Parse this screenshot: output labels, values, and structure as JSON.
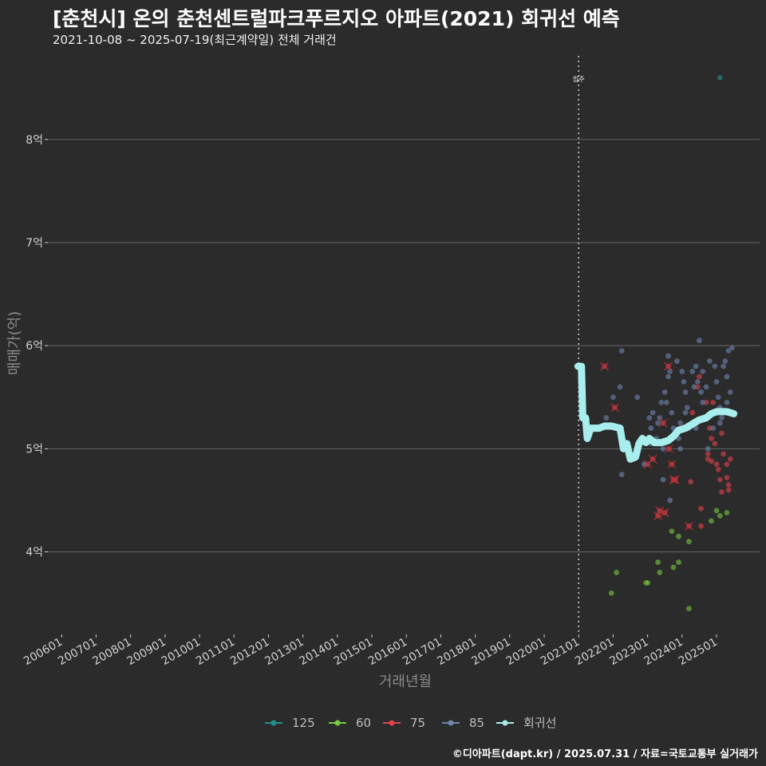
{
  "header": {
    "title": "[춘천시] 온의 춘천센트럴파크푸르지오 아파트(2021) 회귀선 예측",
    "subtitle": "2021-10-08 ~ 2025-07-19(최근계약일) 전체 거래건",
    "caption": "©디아파트(dapt.kr) / 2025.07.31 / 자료=국토교통부 실거래가"
  },
  "chart_data": {
    "type": "scatter",
    "xlabel": "거래년월",
    "ylabel": "매매가(억)",
    "ylim": [
      3.2,
      8.85
    ],
    "xlim": [
      2005.6,
      2026.25
    ],
    "yticks": [
      4,
      5,
      6,
      7,
      8
    ],
    "ytick_labels": [
      "4억",
      "5억",
      "6억",
      "7억",
      "8억"
    ],
    "xticks": [
      "200601",
      "200701",
      "200801",
      "200901",
      "201001",
      "201101",
      "201201",
      "201301",
      "201401",
      "201501",
      "201601",
      "201701",
      "201801",
      "201901",
      "202001",
      "202101",
      "202201",
      "202301",
      "202401",
      "202501"
    ],
    "annotation": {
      "label": "입주",
      "x": 2021.0
    },
    "legend": [
      {
        "key": "125",
        "color": "#21908c"
      },
      {
        "key": "60",
        "color": "#7ac943"
      },
      {
        "key": "75",
        "color": "#e0454f"
      },
      {
        "key": "85",
        "color": "#7186b0"
      },
      {
        "key": "회귀선",
        "color": "#a8eeee"
      }
    ],
    "series": [
      {
        "name": "125",
        "color": "#21908c",
        "points": [
          [
            2025.1,
            8.6
          ]
        ]
      },
      {
        "name": "60",
        "color": "#7ac943",
        "points": [
          [
            2021.95,
            3.6
          ],
          [
            2022.1,
            3.8
          ],
          [
            2022.95,
            3.7
          ],
          [
            2023.0,
            3.7
          ],
          [
            2023.3,
            3.9
          ],
          [
            2023.35,
            3.8
          ],
          [
            2023.7,
            4.2
          ],
          [
            2023.75,
            3.85
          ],
          [
            2023.9,
            3.9
          ],
          [
            2023.9,
            4.15
          ],
          [
            2024.2,
            4.1
          ],
          [
            2024.2,
            3.45
          ],
          [
            2024.85,
            4.3
          ],
          [
            2025.0,
            4.4
          ],
          [
            2025.1,
            4.35
          ],
          [
            2025.3,
            4.38
          ]
        ]
      },
      {
        "name": "75",
        "color": "#e0454f",
        "points": [
          [
            2021.75,
            5.8
          ],
          [
            2022.05,
            5.4
          ],
          [
            2023.0,
            4.85
          ],
          [
            2023.15,
            4.9
          ],
          [
            2023.3,
            4.35
          ],
          [
            2023.35,
            4.4
          ],
          [
            2023.45,
            5.25
          ],
          [
            2023.5,
            4.38
          ],
          [
            2023.6,
            5.8
          ],
          [
            2023.62,
            5.0
          ],
          [
            2023.7,
            4.85
          ],
          [
            2023.75,
            4.7
          ],
          [
            2023.8,
            4.7
          ],
          [
            2024.2,
            4.25
          ],
          [
            2024.25,
            4.68
          ],
          [
            2024.3,
            5.35
          ],
          [
            2024.45,
            5.6
          ],
          [
            2024.5,
            5.7
          ],
          [
            2024.55,
            4.42
          ],
          [
            2024.55,
            4.25
          ],
          [
            2024.7,
            5.45
          ],
          [
            2024.75,
            4.95
          ],
          [
            2024.75,
            4.9
          ],
          [
            2024.8,
            5.2
          ],
          [
            2024.85,
            5.1
          ],
          [
            2024.85,
            4.88
          ],
          [
            2024.9,
            5.45
          ],
          [
            2025.0,
            4.85
          ],
          [
            2025.05,
            4.8
          ],
          [
            2025.1,
            4.7
          ],
          [
            2025.15,
            4.58
          ],
          [
            2025.2,
            4.95
          ],
          [
            2025.3,
            4.85
          ],
          [
            2025.3,
            4.72
          ],
          [
            2025.35,
            4.65
          ],
          [
            2025.35,
            4.6
          ],
          [
            2025.4,
            4.9
          ],
          [
            2025.15,
            5.15
          ],
          [
            2024.95,
            5.05
          ]
        ]
      },
      {
        "name": "85",
        "color": "#7186b0",
        "points": [
          [
            2021.6,
            5.2
          ],
          [
            2021.8,
            5.3
          ],
          [
            2022.0,
            5.5
          ],
          [
            2022.2,
            5.6
          ],
          [
            2022.25,
            5.95
          ],
          [
            2022.25,
            4.75
          ],
          [
            2022.7,
            5.5
          ],
          [
            2022.9,
            4.85
          ],
          [
            2023.05,
            5.3
          ],
          [
            2023.1,
            5.2
          ],
          [
            2023.15,
            5.35
          ],
          [
            2023.25,
            5.1
          ],
          [
            2023.3,
            5.25
          ],
          [
            2023.35,
            5.3
          ],
          [
            2023.4,
            5.45
          ],
          [
            2023.45,
            5.0
          ],
          [
            2023.45,
            4.7
          ],
          [
            2023.5,
            5.55
          ],
          [
            2023.55,
            5.45
          ],
          [
            2023.6,
            5.9
          ],
          [
            2023.6,
            5.7
          ],
          [
            2023.65,
            5.75
          ],
          [
            2023.65,
            4.5
          ],
          [
            2023.7,
            5.35
          ],
          [
            2023.75,
            5.2
          ],
          [
            2023.85,
            5.85
          ],
          [
            2023.9,
            5.1
          ],
          [
            2023.95,
            5.0
          ],
          [
            2024.0,
            5.75
          ],
          [
            2024.05,
            5.65
          ],
          [
            2024.1,
            5.55
          ],
          [
            2024.1,
            5.35
          ],
          [
            2024.15,
            5.4
          ],
          [
            2024.2,
            5.2
          ],
          [
            2024.3,
            5.75
          ],
          [
            2024.35,
            5.6
          ],
          [
            2024.4,
            5.8
          ],
          [
            2024.45,
            5.65
          ],
          [
            2024.5,
            6.05
          ],
          [
            2024.55,
            5.55
          ],
          [
            2024.6,
            5.45
          ],
          [
            2024.6,
            5.75
          ],
          [
            2024.65,
            5.3
          ],
          [
            2024.7,
            5.6
          ],
          [
            2024.75,
            5.0
          ],
          [
            2024.8,
            5.85
          ],
          [
            2024.85,
            5.35
          ],
          [
            2024.9,
            5.2
          ],
          [
            2024.95,
            5.8
          ],
          [
            2025.0,
            5.65
          ],
          [
            2025.05,
            5.5
          ],
          [
            2025.1,
            5.4
          ],
          [
            2025.1,
            5.25
          ],
          [
            2025.15,
            5.3
          ],
          [
            2025.2,
            5.8
          ],
          [
            2025.25,
            5.85
          ],
          [
            2025.3,
            5.7
          ],
          [
            2025.35,
            5.95
          ],
          [
            2025.4,
            5.55
          ],
          [
            2025.45,
            5.98
          ],
          [
            2025.3,
            5.45
          ],
          [
            2024.4,
            5.2
          ],
          [
            2023.95,
            5.25
          ],
          [
            2023.1,
            5.05
          ]
        ]
      }
    ],
    "regression": {
      "name": "회귀선",
      "color": "#a8eeee",
      "points": [
        [
          2020.98,
          5.8
        ],
        [
          2021.08,
          5.8
        ],
        [
          2021.12,
          5.3
        ],
        [
          2021.2,
          5.3
        ],
        [
          2021.25,
          5.1
        ],
        [
          2021.35,
          5.2
        ],
        [
          2021.6,
          5.2
        ],
        [
          2021.75,
          5.22
        ],
        [
          2021.95,
          5.22
        ],
        [
          2022.2,
          5.2
        ],
        [
          2022.3,
          5.0
        ],
        [
          2022.4,
          5.05
        ],
        [
          2022.5,
          4.9
        ],
        [
          2022.65,
          4.92
        ],
        [
          2022.75,
          5.05
        ],
        [
          2022.85,
          5.1
        ],
        [
          2022.95,
          5.06
        ],
        [
          2023.05,
          5.1
        ],
        [
          2023.2,
          5.06
        ],
        [
          2023.4,
          5.06
        ],
        [
          2023.6,
          5.08
        ],
        [
          2023.75,
          5.12
        ],
        [
          2023.9,
          5.18
        ],
        [
          2024.1,
          5.2
        ],
        [
          2024.3,
          5.24
        ],
        [
          2024.5,
          5.28
        ],
        [
          2024.7,
          5.3
        ],
        [
          2024.85,
          5.34
        ],
        [
          2025.0,
          5.36
        ],
        [
          2025.15,
          5.36
        ],
        [
          2025.3,
          5.36
        ],
        [
          2025.5,
          5.34
        ]
      ]
    }
  }
}
